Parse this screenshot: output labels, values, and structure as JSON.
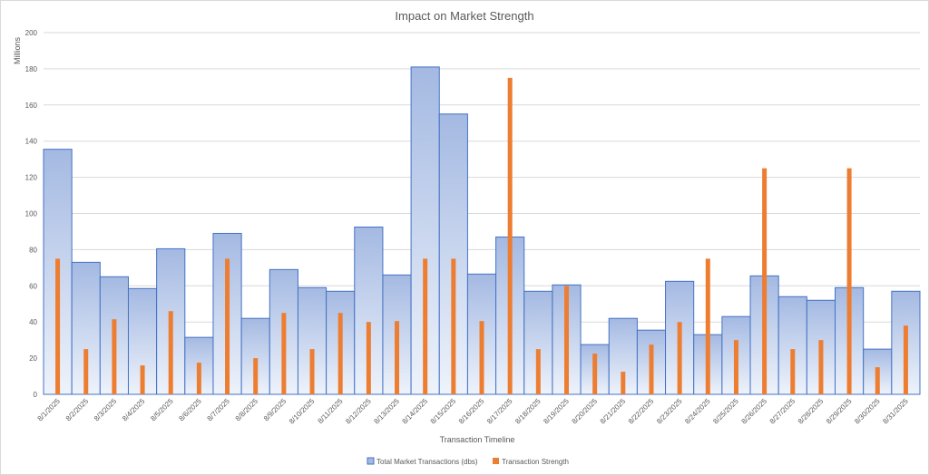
{
  "chart_data": {
    "type": "bar",
    "title": "Impact on Market Strength",
    "xlabel": "Transaction Timeline",
    "ylabel": "Millions",
    "ylim": [
      0,
      200
    ],
    "yticks": [
      0,
      20,
      40,
      60,
      80,
      100,
      120,
      140,
      160,
      180,
      200
    ],
    "grid": true,
    "legend_position": "bottom",
    "categories": [
      "8/1/2025",
      "8/2/2025",
      "8/3/2025",
      "8/4/2025",
      "8/5/2025",
      "8/6/2025",
      "8/7/2025",
      "8/8/2025",
      "8/9/2025",
      "8/10/2025",
      "8/11/2025",
      "8/12/2025",
      "8/13/2025",
      "8/14/2025",
      "8/15/2025",
      "8/16/2025",
      "8/17/2025",
      "8/18/2025",
      "8/19/2025",
      "8/20/2025",
      "8/21/2025",
      "8/22/2025",
      "8/23/2025",
      "8/24/2025",
      "8/25/2025",
      "8/26/2025",
      "8/27/2025",
      "8/28/2025",
      "8/29/2025",
      "8/30/2025",
      "8/31/2025"
    ],
    "series": [
      {
        "name": "Total Market Transactions (dbs)",
        "color": "#4472c4",
        "fill_top": "#a4b9e2",
        "fill_bottom": "#eef3fb",
        "values": [
          135.5,
          73,
          65,
          58.5,
          80.5,
          31.5,
          89,
          42,
          69,
          59,
          57,
          92.5,
          66,
          181,
          155,
          66.5,
          87,
          57,
          60.5,
          27.5,
          42,
          35.5,
          62.5,
          33,
          43,
          65.5,
          54,
          52,
          59,
          25,
          57
        ]
      },
      {
        "name": "Transaction Strength",
        "color": "#ed7d31",
        "values": [
          75,
          25,
          41.5,
          16,
          46,
          17.5,
          75,
          20,
          45,
          25,
          45,
          40,
          40.5,
          75,
          75,
          40.5,
          175,
          25,
          60,
          22.5,
          12.5,
          27.5,
          40,
          75,
          30,
          125,
          25,
          30,
          125,
          15,
          38
        ]
      }
    ]
  }
}
